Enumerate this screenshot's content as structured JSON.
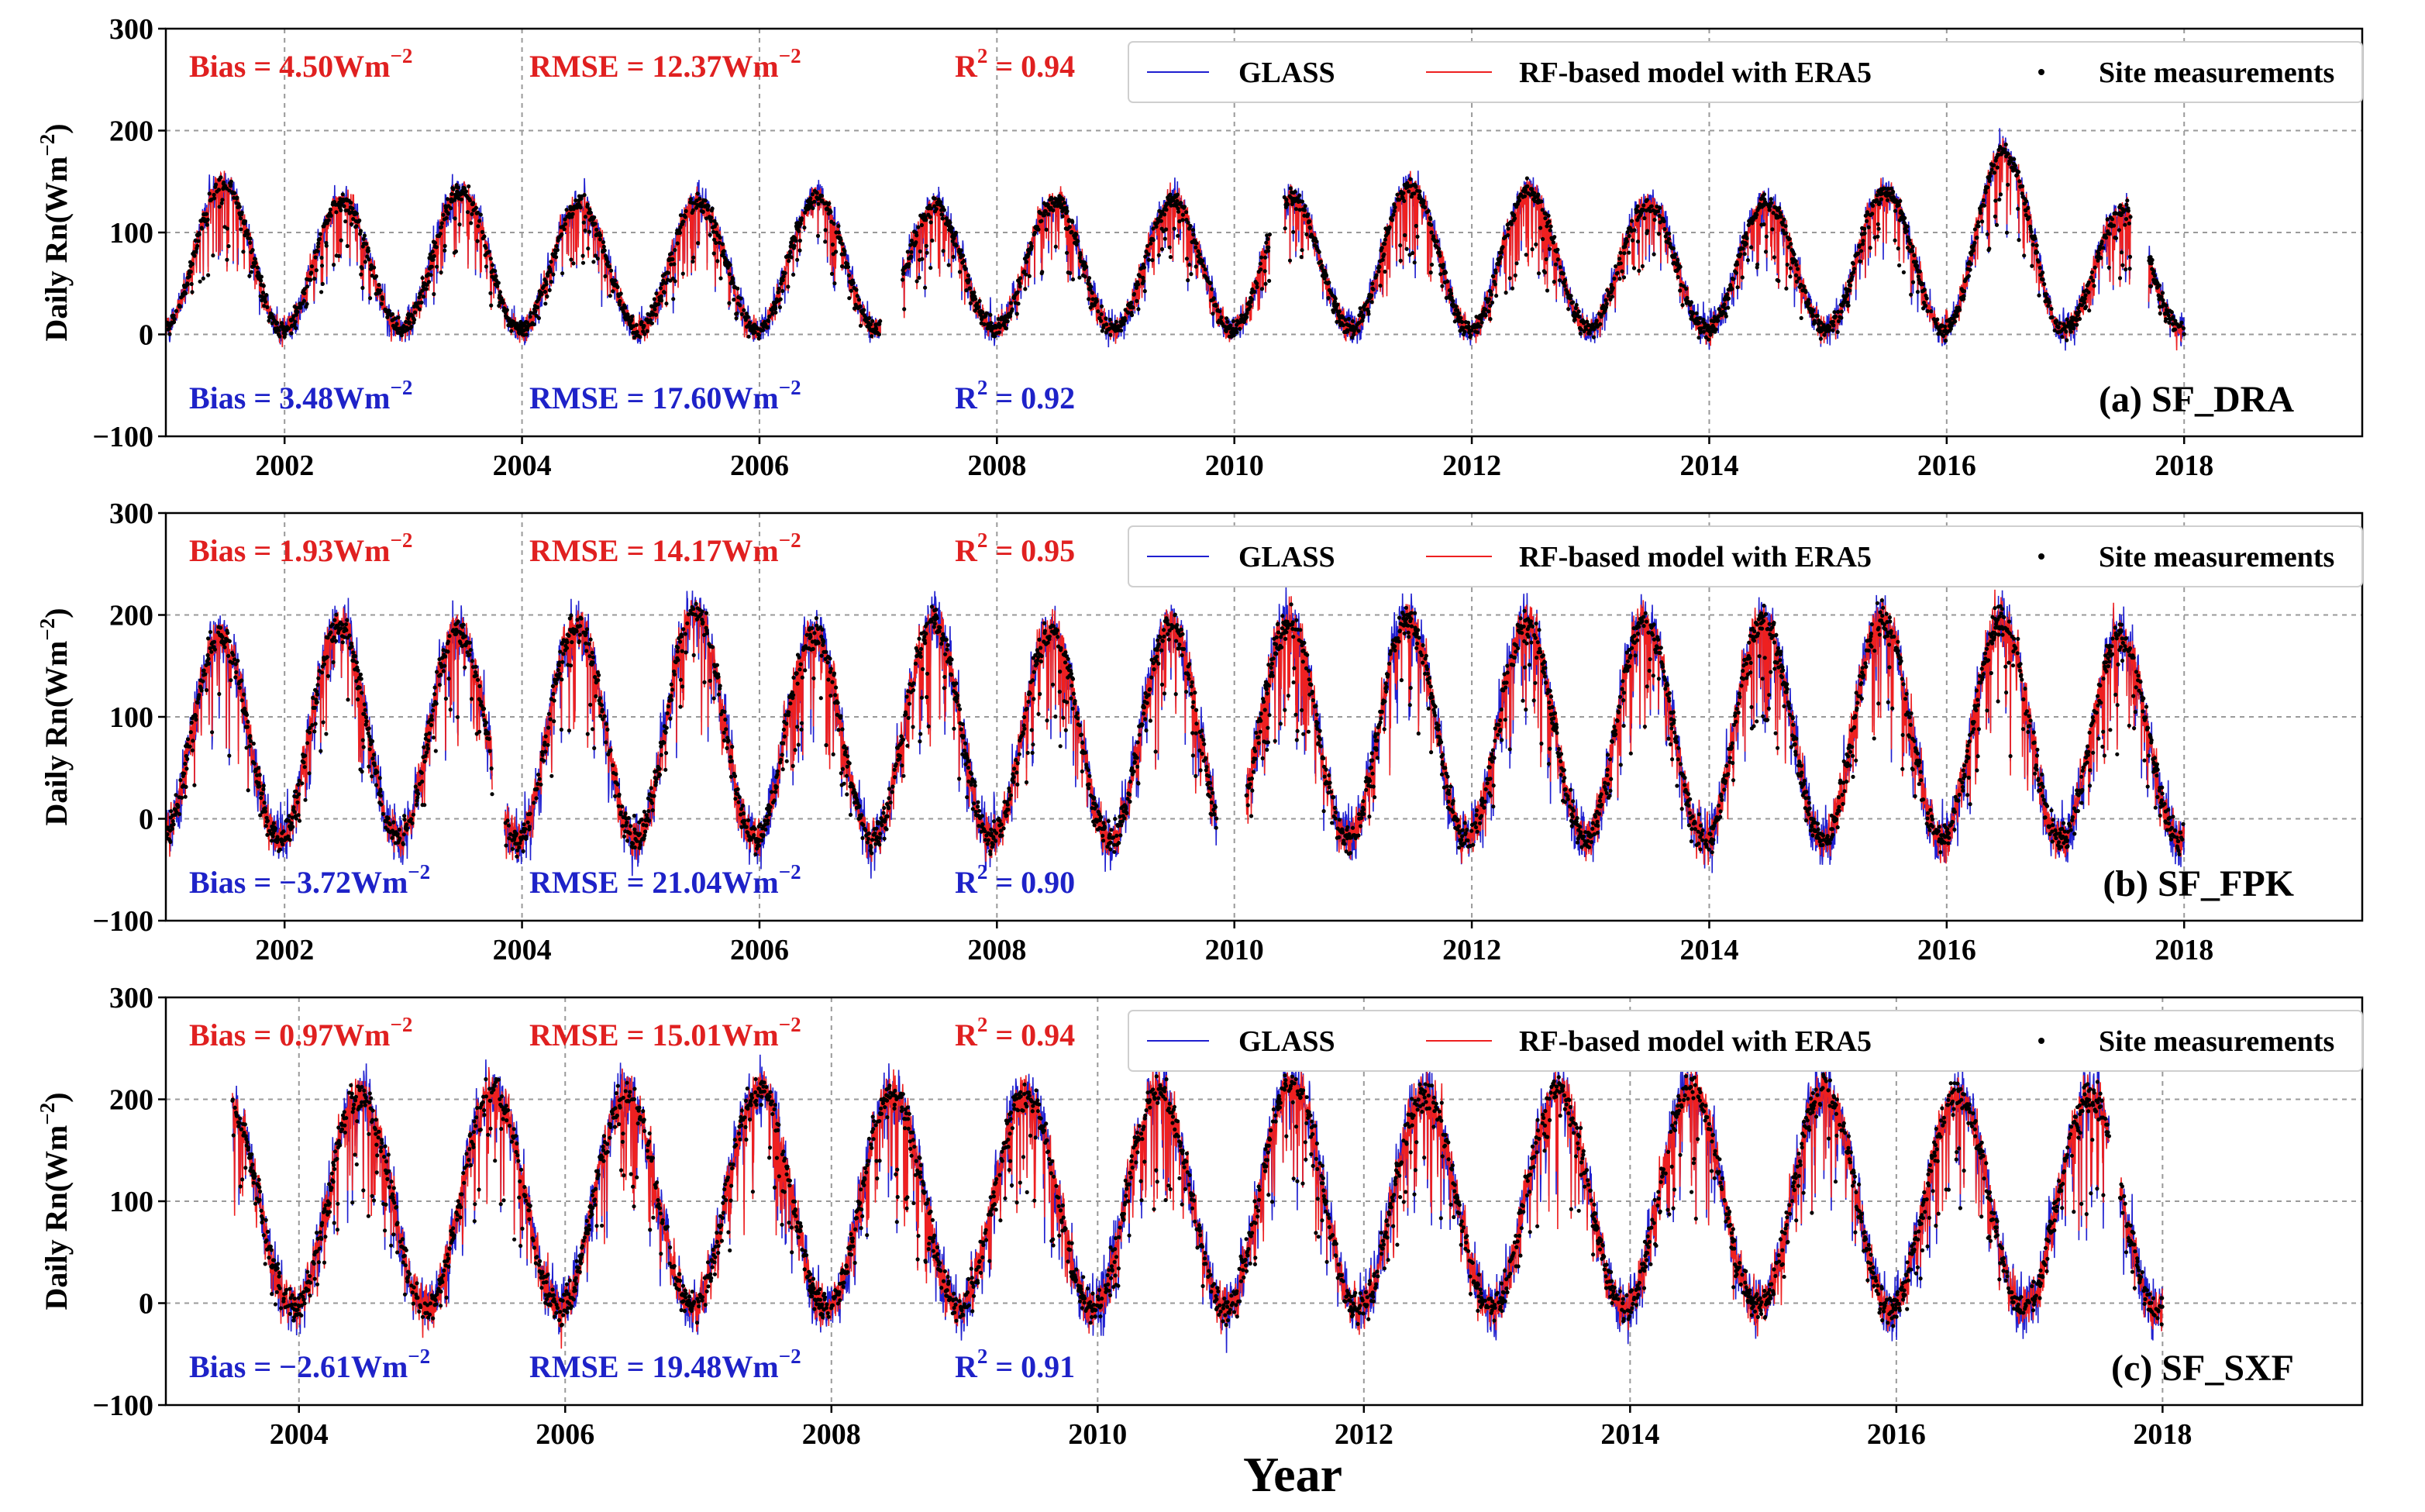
{
  "colors": {
    "glass": "#1f1fd0",
    "rf": "#ee2020",
    "site": "#000000",
    "stat_red": "#e02020",
    "stat_blue": "#1e22c8",
    "grid": "#9a9a9a"
  },
  "x_axis_label": "Year",
  "legend": {
    "glass": "GLASS",
    "rf": "RF-based model with ERA5",
    "site": "Site measurements"
  },
  "panels": [
    {
      "label": "(a) SF_DRA",
      "ylabel_main": "Daily Rn(Wm",
      "ylabel_sup": "−2",
      "ylabel_close": ")",
      "xticks": [
        "2002",
        "2004",
        "2006",
        "2008",
        "2010",
        "2012",
        "2014",
        "2016",
        "2018"
      ],
      "yticks": [
        "300",
        "200",
        "100",
        "0",
        "−100"
      ],
      "stats_red": {
        "bias_text": "Bias = 4.50Wm",
        "bias_sup": "−2",
        "rmse_text": "RMSE = 12.37Wm",
        "rmse_sup": "−2",
        "r2_pre": "R",
        "r2_sup": "2",
        "r2_post": " = 0.94"
      },
      "stats_blue": {
        "bias_text": "Bias = 3.48Wm",
        "bias_sup": "−2",
        "rmse_text": "RMSE = 17.60Wm",
        "rmse_sup": "−2",
        "r2_pre": "R",
        "r2_sup": "2",
        "r2_post": " = 0.92"
      }
    },
    {
      "label": "(b) SF_FPK",
      "ylabel_main": "Daily Rn(Wm",
      "ylabel_sup": "−2",
      "ylabel_close": ")",
      "xticks": [
        "2002",
        "2004",
        "2006",
        "2008",
        "2010",
        "2012",
        "2014",
        "2016",
        "2018"
      ],
      "yticks": [
        "300",
        "200",
        "100",
        "0",
        "−100"
      ],
      "stats_red": {
        "bias_text": "Bias = 1.93Wm",
        "bias_sup": "−2",
        "rmse_text": "RMSE = 14.17Wm",
        "rmse_sup": "−2",
        "r2_pre": "R",
        "r2_sup": "2",
        "r2_post": " = 0.95"
      },
      "stats_blue": {
        "bias_text": "Bias = −3.72Wm",
        "bias_sup": "−2",
        "rmse_text": "RMSE = 21.04Wm",
        "rmse_sup": "−2",
        "r2_pre": "R",
        "r2_sup": "2",
        "r2_post": " = 0.90"
      }
    },
    {
      "label": "(c) SF_SXF",
      "ylabel_main": "Daily Rn(Wm",
      "ylabel_sup": "−2",
      "ylabel_close": ")",
      "xticks": [
        "2004",
        "2006",
        "2008",
        "2010",
        "2012",
        "2014",
        "2016",
        "2018"
      ],
      "yticks": [
        "300",
        "200",
        "100",
        "0",
        "−100"
      ],
      "stats_red": {
        "bias_text": "Bias = 0.97Wm",
        "bias_sup": "−2",
        "rmse_text": "RMSE = 15.01Wm",
        "rmse_sup": "−2",
        "r2_pre": "R",
        "r2_sup": "2",
        "r2_post": " = 0.94"
      },
      "stats_blue": {
        "bias_text": "Bias = −2.61Wm",
        "bias_sup": "−2",
        "rmse_text": "RMSE = 19.48Wm",
        "rmse_sup": "−2",
        "r2_pre": "R",
        "r2_sup": "2",
        "r2_post": " = 0.91"
      }
    }
  ],
  "chart_data": [
    {
      "type": "line",
      "title": "(a) SF_DRA",
      "xlabel": "",
      "ylabel": "Daily Rn(Wm−2)",
      "xlim": [
        2001.0,
        2019.5
      ],
      "ylim": [
        -100,
        300
      ],
      "xticks": [
        2002,
        2004,
        2006,
        2008,
        2010,
        2012,
        2014,
        2016,
        2018
      ],
      "yticks": [
        300,
        200,
        100,
        0,
        -100
      ],
      "grid": true,
      "legend_position": "top-right",
      "series_names": [
        "GLASS",
        "RF-based model with ERA5",
        "Site measurements"
      ],
      "seasonal_cycle": {
        "peak_month": 6.3,
        "summer_peak_wm2": 130,
        "winter_min_wm2": 5,
        "noise_wm2": 18
      },
      "data_range": [
        2001.0,
        2018.0
      ],
      "gaps": [
        [
          2007.02,
          2007.2
        ],
        [
          2010.3,
          2010.42
        ],
        [
          2017.55,
          2017.7
        ]
      ],
      "annual_peaks": [
        [
          2001.5,
          150
        ],
        [
          2002.5,
          130
        ],
        [
          2003.5,
          140
        ],
        [
          2004.5,
          128
        ],
        [
          2005.5,
          130
        ],
        [
          2006.5,
          135
        ],
        [
          2007.5,
          125
        ],
        [
          2008.5,
          130
        ],
        [
          2009.5,
          130
        ],
        [
          2010.5,
          135
        ],
        [
          2011.5,
          145
        ],
        [
          2012.5,
          140
        ],
        [
          2013.5,
          128
        ],
        [
          2014.5,
          130
        ],
        [
          2015.5,
          140
        ],
        [
          2016.5,
          180
        ],
        [
          2017.5,
          120
        ]
      ],
      "stats": {
        "RF-based model with ERA5": {
          "bias": 4.5,
          "rmse": 12.37,
          "r2": 0.94
        },
        "GLASS": {
          "bias": 3.48,
          "rmse": 17.6,
          "r2": 0.92
        }
      }
    },
    {
      "type": "line",
      "title": "(b) SF_FPK",
      "xlabel": "",
      "ylabel": "Daily Rn(Wm−2)",
      "xlim": [
        2001.0,
        2019.5
      ],
      "ylim": [
        -100,
        300
      ],
      "xticks": [
        2002,
        2004,
        2006,
        2008,
        2010,
        2012,
        2014,
        2016,
        2018
      ],
      "yticks": [
        300,
        200,
        100,
        0,
        -100
      ],
      "grid": true,
      "legend_position": "top-right",
      "series_names": [
        "GLASS",
        "RF-based model with ERA5",
        "Site measurements"
      ],
      "seasonal_cycle": {
        "peak_month": 6.0,
        "summer_peak_wm2": 165,
        "winter_min_wm2": -20,
        "noise_wm2": 30
      },
      "data_range": [
        2001.0,
        2018.0
      ],
      "gaps": [
        [
          2003.75,
          2003.85
        ],
        [
          2009.85,
          2010.1
        ]
      ],
      "annual_peaks": [
        [
          2001.4,
          180
        ],
        [
          2002.5,
          190
        ],
        [
          2003.5,
          185
        ],
        [
          2004.5,
          190
        ],
        [
          2005.5,
          205
        ],
        [
          2006.5,
          180
        ],
        [
          2007.5,
          195
        ],
        [
          2008.5,
          185
        ],
        [
          2009.5,
          190
        ],
        [
          2010.5,
          195
        ],
        [
          2011.5,
          195
        ],
        [
          2012.5,
          190
        ],
        [
          2013.5,
          195
        ],
        [
          2014.5,
          195
        ],
        [
          2015.5,
          195
        ],
        [
          2016.5,
          195
        ],
        [
          2017.5,
          180
        ]
      ],
      "stats": {
        "RF-based model with ERA5": {
          "bias": 1.93,
          "rmse": 14.17,
          "r2": 0.95
        },
        "GLASS": {
          "bias": -3.72,
          "rmse": 21.04,
          "r2": 0.9
        }
      }
    },
    {
      "type": "line",
      "title": "(c) SF_SXF",
      "xlabel": "Year",
      "ylabel": "Daily Rn(Wm−2)",
      "xlim": [
        2003.0,
        2019.5
      ],
      "ylim": [
        -100,
        300
      ],
      "xticks": [
        2004,
        2006,
        2008,
        2010,
        2012,
        2014,
        2016,
        2018
      ],
      "yticks": [
        300,
        200,
        100,
        0,
        -100
      ],
      "grid": true,
      "legend_position": "top-right",
      "series_names": [
        "GLASS",
        "RF-based model with ERA5",
        "Site measurements"
      ],
      "seasonal_cycle": {
        "peak_month": 6.0,
        "summer_peak_wm2": 180,
        "winter_min_wm2": -5,
        "noise_wm2": 32
      },
      "data_range": [
        2003.5,
        2018.0
      ],
      "gaps": [
        [
          2017.6,
          2017.68
        ]
      ],
      "annual_peaks": [
        [
          2003.5,
          200
        ],
        [
          2004.5,
          205
        ],
        [
          2005.5,
          210
        ],
        [
          2006.5,
          205
        ],
        [
          2007.5,
          210
        ],
        [
          2008.5,
          205
        ],
        [
          2009.5,
          205
        ],
        [
          2010.5,
          210
        ],
        [
          2011.5,
          215
        ],
        [
          2012.5,
          205
        ],
        [
          2013.5,
          210
        ],
        [
          2014.5,
          210
        ],
        [
          2015.5,
          210
        ],
        [
          2016.5,
          205
        ],
        [
          2017.5,
          205
        ]
      ],
      "stats": {
        "RF-based model with ERA5": {
          "bias": 0.97,
          "rmse": 15.01,
          "r2": 0.94
        },
        "GLASS": {
          "bias": -2.61,
          "rmse": 19.48,
          "r2": 0.91
        }
      }
    }
  ]
}
